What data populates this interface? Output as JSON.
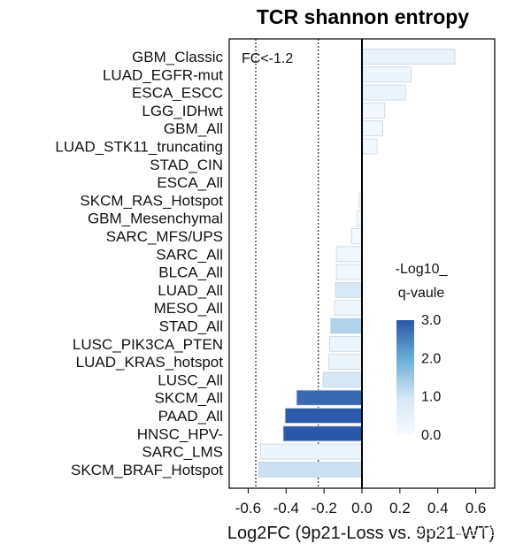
{
  "chart_data": {
    "type": "bar",
    "orientation": "horizontal",
    "title": "TCR shannon entropy",
    "xlabel": "Log2FC (9p21-Loss vs. 9p21-WT)",
    "xlim": [
      -0.7,
      0.7
    ],
    "x_ticks": [
      "-0.6",
      "-0.4",
      "-0.2",
      "0.0",
      "0.2",
      "0.4",
      "0.6"
    ],
    "x_tick_values": [
      -0.6,
      -0.4,
      -0.2,
      0.0,
      0.2,
      0.4,
      0.6
    ],
    "annotation": "FC<-1.2",
    "threshold_lines": [
      -0.56,
      -0.23
    ],
    "categories": [
      "GBM_Classic",
      "LUAD_EGFR-mut",
      "ESCA_ESCC",
      "LGG_IDHwt",
      "GBM_All",
      "LUAD_STK11_truncating",
      "STAD_CIN",
      "ESCA_All",
      "SKCM_RAS_Hotspot",
      "GBM_Mesenchymal",
      "SARC_MFS/UPS",
      "SARC_All",
      "BLCA_All",
      "LUAD_All",
      "MESO_All",
      "STAD_All",
      "LUSC_PIK3CA_PTEN",
      "LUAD_KRAS_hotspot",
      "LUSC_All",
      "SKCM_All",
      "PAAD_All",
      "HNSC_HPV-",
      "SARC_LMS",
      "SKCM_BRAF_Hotspot"
    ],
    "values": [
      0.49,
      0.26,
      0.23,
      0.12,
      0.11,
      0.08,
      0.0,
      0.0,
      -0.015,
      -0.025,
      -0.055,
      -0.135,
      -0.135,
      -0.14,
      -0.145,
      -0.165,
      -0.17,
      -0.175,
      -0.205,
      -0.345,
      -0.405,
      -0.415,
      -0.535,
      -0.545
    ],
    "q_values": [
      0.4,
      0.3,
      0.35,
      0.15,
      0.15,
      0.12,
      0.0,
      0.0,
      0.05,
      0.08,
      0.1,
      0.2,
      0.2,
      0.9,
      0.25,
      1.35,
      0.3,
      0.3,
      1.0,
      2.8,
      2.95,
      3.0,
      0.3,
      1.1
    ],
    "legend": {
      "title_line1": "-Log10_",
      "title_line2": "q-vaule",
      "ticks": [
        "3.0",
        "2.0",
        "1.0",
        "0.0"
      ],
      "tick_values": [
        3.0,
        2.0,
        1.0,
        0.0
      ],
      "min_color": "#f7fbff",
      "max_color": "#2b57a7"
    }
  },
  "watermark": "知乎 @生信阿不"
}
